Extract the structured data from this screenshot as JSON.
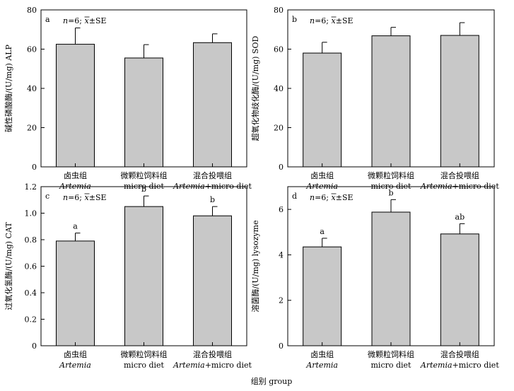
{
  "figure": {
    "xlabel": "组别 group"
  },
  "chart_data": [
    {
      "id": "a",
      "type": "bar",
      "panel_letter": "a",
      "ylabel": "碱性磷酸酶/(U/mg) ALP",
      "ylim": [
        0,
        80
      ],
      "yticks": [
        "0",
        "20",
        "40",
        "60",
        "80"
      ],
      "note_n": "n",
      "note_rest": "=6; ",
      "note_x": "x",
      "note_se": "±SE",
      "categories": [
        {
          "zh": "卤虫组",
          "en": "Artemia",
          "en_tail": ""
        },
        {
          "zh": "微颗粒饲料组",
          "en": "micro diet",
          "en_tail": ""
        },
        {
          "zh": "混合投喂组",
          "en": "Artemia",
          "en_tail": "+micro diet"
        }
      ],
      "values": [
        62.5,
        55.5,
        63.3
      ],
      "errors": [
        8.3,
        6.8,
        4.5
      ],
      "sig": [
        "",
        "",
        ""
      ]
    },
    {
      "id": "b",
      "type": "bar",
      "panel_letter": "b",
      "ylabel": "超氧化物歧化酶/(U/mg) SOD",
      "ylim": [
        0,
        80
      ],
      "yticks": [
        "0",
        "20",
        "40",
        "60",
        "80"
      ],
      "note_n": "n",
      "note_rest": "=6; ",
      "note_x": "x",
      "note_se": "±SE",
      "categories": [
        {
          "zh": "卤虫组",
          "en": "Artemia",
          "en_tail": ""
        },
        {
          "zh": "微颗粒饲料组",
          "en": "micro diet",
          "en_tail": ""
        },
        {
          "zh": "混合投喂组",
          "en": "Artemia",
          "en_tail": "+micro diet"
        }
      ],
      "values": [
        58.0,
        66.8,
        67.0
      ],
      "errors": [
        5.5,
        4.3,
        6.5
      ],
      "sig": [
        "",
        "",
        ""
      ]
    },
    {
      "id": "c",
      "type": "bar",
      "panel_letter": "c",
      "ylabel": "过氧化氢酶/(U/mg) CAT",
      "ylim": [
        0,
        1.2
      ],
      "yticks": [
        "0",
        "0.2",
        "0.4",
        "0.6",
        "0.8",
        "1.0",
        "1.2"
      ],
      "note_n": "n",
      "note_rest": "=6; ",
      "note_x": "x",
      "note_se": "±SE",
      "categories": [
        {
          "zh": "卤虫组",
          "en": "Artemia",
          "en_tail": ""
        },
        {
          "zh": "微颗粒饲料组",
          "en": "micro diet",
          "en_tail": ""
        },
        {
          "zh": "混合投喂组",
          "en": "Artemia",
          "en_tail": "+micro diet"
        }
      ],
      "values": [
        0.79,
        1.05,
        0.98
      ],
      "errors": [
        0.06,
        0.08,
        0.07
      ],
      "sig": [
        "a",
        "b",
        "b"
      ]
    },
    {
      "id": "d",
      "type": "bar",
      "panel_letter": "d",
      "ylabel": "溶菌酶/(U/mg) lysozyme",
      "ylim": [
        0,
        7
      ],
      "yticks": [
        "0",
        "2",
        "4",
        "6"
      ],
      "note_n": "n",
      "note_rest": "=6; ",
      "note_x": "x",
      "note_se": "±SE",
      "categories": [
        {
          "zh": "卤虫组",
          "en": "Artemia",
          "en_tail": ""
        },
        {
          "zh": "微颗粒饲料组",
          "en": "micro diet",
          "en_tail": ""
        },
        {
          "zh": "混合投喂组",
          "en": "Artemia",
          "en_tail": "+micro diet"
        }
      ],
      "values": [
        4.35,
        5.88,
        4.92
      ],
      "errors": [
        0.38,
        0.55,
        0.45
      ],
      "sig": [
        "a",
        "b",
        "ab"
      ]
    }
  ]
}
